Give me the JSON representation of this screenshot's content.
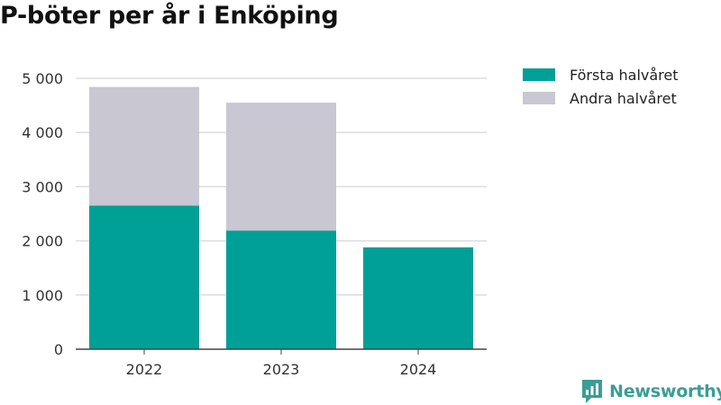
{
  "chart_data": {
    "type": "bar",
    "stacked": true,
    "title": "P-böter per år i Enköping",
    "xlabel": "",
    "ylabel": "",
    "categories": [
      "2022",
      "2023",
      "2024"
    ],
    "series": [
      {
        "name": "Första halvåret",
        "color": "#00a096",
        "values": [
          2650,
          2190,
          1880
        ]
      },
      {
        "name": "Andra halvåret",
        "color": "#c8c7d2",
        "values": [
          2190,
          2360,
          0
        ]
      }
    ],
    "ylim": [
      0,
      5000
    ],
    "yticks": [
      0,
      1000,
      2000,
      3000,
      4000,
      5000
    ],
    "ytick_labels": [
      "0",
      "1 000",
      "2 000",
      "3 000",
      "4 000",
      "5 000"
    ],
    "grid": true,
    "legend_position": "top-right"
  },
  "brand": {
    "name": "Newsworthy",
    "icon": "newsworthy-logo-icon",
    "color": "#3a9e96"
  }
}
